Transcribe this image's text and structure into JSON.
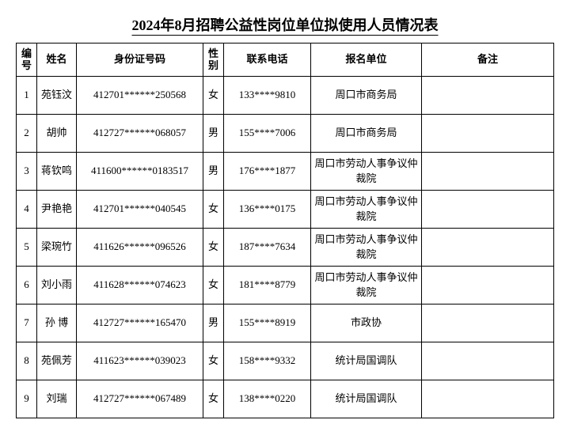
{
  "title": "2024年8月招聘公益性岗位单位拟使用人员情况表",
  "headers": {
    "no": "编号",
    "name": "姓名",
    "id": "身份证号码",
    "gender": "性别",
    "phone": "联系电话",
    "unit": "报名单位",
    "note": "备注"
  },
  "rows": [
    {
      "no": "1",
      "name": "苑钰汶",
      "id": "412701******250568",
      "gender": "女",
      "phone": "133****9810",
      "unit": "周口市商务局",
      "note": ""
    },
    {
      "no": "2",
      "name": "胡帅",
      "id": "412727******068057",
      "gender": "男",
      "phone": "155****7006",
      "unit": "周口市商务局",
      "note": ""
    },
    {
      "no": "3",
      "name": "蒋钦鸣",
      "id": "411600******0183517",
      "gender": "男",
      "phone": "176****1877",
      "unit": "周口市劳动人事争议仲裁院",
      "note": ""
    },
    {
      "no": "4",
      "name": "尹艳艳",
      "id": "412701******040545",
      "gender": "女",
      "phone": "136****0175",
      "unit": "周口市劳动人事争议仲裁院",
      "note": ""
    },
    {
      "no": "5",
      "name": "梁琬竹",
      "id": "411626******096526",
      "gender": "女",
      "phone": "187****7634",
      "unit": "周口市劳动人事争议仲裁院",
      "note": ""
    },
    {
      "no": "6",
      "name": "刘小雨",
      "id": "411628******074623",
      "gender": "女",
      "phone": "181****8779",
      "unit": "周口市劳动人事争议仲裁院",
      "note": ""
    },
    {
      "no": "7",
      "name": "孙 博",
      "id": "412727******165470",
      "gender": "男",
      "phone": "155****8919",
      "unit": "市政协",
      "note": ""
    },
    {
      "no": "8",
      "name": "苑佩芳",
      "id": "411623******039023",
      "gender": "女",
      "phone": "158****9332",
      "unit": "统计局国调队",
      "note": ""
    },
    {
      "no": "9",
      "name": "刘瑞",
      "id": "412727******067489",
      "gender": "女",
      "phone": "138****0220",
      "unit": "统计局国调队",
      "note": ""
    }
  ],
  "colors": {
    "background": "#ffffff",
    "border": "#000000",
    "text": "#000000"
  }
}
